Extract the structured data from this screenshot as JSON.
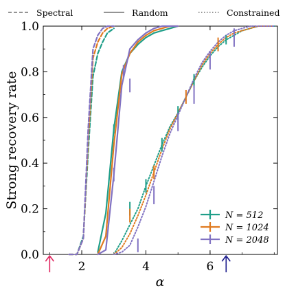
{
  "chart_data": {
    "type": "line",
    "xlabel": "α",
    "ylabel": "Strong recovery rate",
    "xlim": [
      0.8,
      8.1
    ],
    "ylim": [
      0.0,
      1.0
    ],
    "x_ticks": [
      2,
      4,
      6
    ],
    "y_ticks": [
      0.0,
      0.2,
      0.4,
      0.6,
      0.8,
      1.0
    ],
    "grid": false,
    "method_legend": [
      {
        "label": "Spectral",
        "dash": "dashed"
      },
      {
        "label": "Random",
        "dash": "solid"
      },
      {
        "label": "Constrained",
        "dash": "dotted"
      }
    ],
    "size_legend_placement": "bottom-right",
    "colors": {
      "N512": "#1f9e89",
      "N1024": "#e07a1f",
      "N2048": "#8172c2"
    },
    "size_legend": [
      {
        "text": "N = 512",
        "color": "#1f9e89"
      },
      {
        "text": "N = 1024",
        "color": "#e07a1f"
      },
      {
        "text": "N = 2048",
        "color": "#8172c2"
      }
    ],
    "series": [
      {
        "method": "Spectral",
        "N": 512,
        "color": "#1f9e89",
        "dash": "dashed",
        "x": [
          1.6,
          1.85,
          2.05,
          2.2,
          2.35,
          2.5,
          2.65,
          2.8,
          3.0
        ],
        "y": [
          0.0,
          0.0,
          0.08,
          0.45,
          0.78,
          0.88,
          0.93,
          0.97,
          0.99
        ]
      },
      {
        "method": "Spectral",
        "N": 1024,
        "color": "#e07a1f",
        "dash": "dashed",
        "x": [
          1.6,
          1.85,
          2.05,
          2.2,
          2.35,
          2.5,
          2.65,
          2.8,
          3.0
        ],
        "y": [
          0.0,
          0.0,
          0.07,
          0.5,
          0.86,
          0.93,
          0.97,
          0.99,
          1.0
        ]
      },
      {
        "method": "Spectral",
        "N": 2048,
        "color": "#8172c2",
        "dash": "dashed",
        "x": [
          1.6,
          1.85,
          2.05,
          2.2,
          2.35,
          2.5,
          2.65,
          2.8,
          3.0
        ],
        "y": [
          0.0,
          0.0,
          0.07,
          0.55,
          0.9,
          0.96,
          0.99,
          1.0,
          1.0
        ]
      },
      {
        "method": "Random",
        "N": 512,
        "color": "#1f9e89",
        "dash": "solid",
        "x": [
          2.5,
          2.75,
          3.0,
          3.25,
          3.5,
          3.75,
          4.0,
          4.25,
          4.5,
          4.75,
          5.0
        ],
        "y": [
          0.01,
          0.18,
          0.55,
          0.8,
          0.88,
          0.92,
          0.95,
          0.97,
          0.98,
          0.99,
          1.0
        ]
      },
      {
        "method": "Random",
        "N": 1024,
        "color": "#e07a1f",
        "dash": "solid",
        "x": [
          2.5,
          2.75,
          3.0,
          3.25,
          3.5,
          3.75,
          4.0,
          4.25,
          4.5,
          4.75,
          5.0
        ],
        "y": [
          0.0,
          0.08,
          0.48,
          0.79,
          0.88,
          0.93,
          0.96,
          0.98,
          0.99,
          1.0,
          1.0
        ]
      },
      {
        "method": "Random",
        "N": 2048,
        "color": "#8172c2",
        "dash": "solid",
        "x": [
          2.5,
          2.75,
          3.0,
          3.25,
          3.5,
          3.75,
          4.0,
          4.25,
          4.5,
          4.75,
          5.0
        ],
        "y": [
          0.0,
          0.02,
          0.35,
          0.74,
          0.9,
          0.94,
          0.97,
          0.99,
          1.0,
          1.0,
          1.0
        ]
      },
      {
        "method": "Constrained",
        "N": 512,
        "color": "#1f9e89",
        "dash": "dotted",
        "x": [
          3.0,
          3.25,
          3.5,
          3.75,
          4.0,
          4.25,
          4.5,
          4.75,
          5.0,
          5.25,
          5.5,
          5.75,
          6.0,
          6.25,
          6.5,
          6.75,
          7.0,
          7.25,
          7.5,
          7.75,
          8.0
        ],
        "y": [
          0.0,
          0.06,
          0.13,
          0.2,
          0.3,
          0.39,
          0.48,
          0.56,
          0.62,
          0.69,
          0.76,
          0.82,
          0.87,
          0.91,
          0.94,
          0.96,
          0.98,
          0.99,
          1.0,
          1.0,
          1.0
        ]
      },
      {
        "method": "Constrained",
        "N": 1024,
        "color": "#e07a1f",
        "dash": "dotted",
        "x": [
          3.0,
          3.25,
          3.5,
          3.75,
          4.0,
          4.25,
          4.5,
          4.75,
          5.0,
          5.25,
          5.5,
          5.75,
          6.0,
          6.25,
          6.5,
          6.75,
          7.0,
          7.25,
          7.5,
          7.75,
          8.0
        ],
        "y": [
          0.0,
          0.03,
          0.09,
          0.17,
          0.26,
          0.36,
          0.46,
          0.55,
          0.62,
          0.69,
          0.76,
          0.83,
          0.88,
          0.92,
          0.95,
          0.97,
          0.98,
          0.99,
          1.0,
          1.0,
          1.0
        ]
      },
      {
        "method": "Constrained",
        "N": 2048,
        "color": "#8172c2",
        "dash": "dotted",
        "x": [
          3.0,
          3.25,
          3.5,
          3.75,
          4.0,
          4.25,
          4.5,
          4.75,
          5.0,
          5.25,
          5.5,
          5.75,
          6.0,
          6.25,
          6.5,
          6.75,
          7.0,
          7.25,
          7.5,
          7.75,
          8.0
        ],
        "y": [
          0.0,
          0.01,
          0.04,
          0.12,
          0.21,
          0.32,
          0.43,
          0.53,
          0.61,
          0.69,
          0.77,
          0.84,
          0.89,
          0.93,
          0.96,
          0.98,
          0.99,
          1.0,
          1.0,
          1.0,
          1.0
        ]
      }
    ],
    "error_bars": [
      {
        "N": 512,
        "x": 3.0,
        "y": 0.55,
        "e": 0.02
      },
      {
        "N": 512,
        "x": 3.5,
        "y": 0.2,
        "e": 0.03
      },
      {
        "N": 512,
        "x": 4.0,
        "y": 0.3,
        "e": 0.03
      },
      {
        "N": 512,
        "x": 4.5,
        "y": 0.48,
        "e": 0.03
      },
      {
        "N": 512,
        "x": 5.0,
        "y": 0.62,
        "e": 0.03
      },
      {
        "N": 512,
        "x": 5.5,
        "y": 0.76,
        "e": 0.03
      },
      {
        "N": 512,
        "x": 6.5,
        "y": 0.94,
        "e": 0.02
      },
      {
        "N": 1024,
        "x": 3.5,
        "y": 0.17,
        "e": 0.03
      },
      {
        "N": 1024,
        "x": 4.25,
        "y": 0.36,
        "e": 0.03
      },
      {
        "N": 1024,
        "x": 5.25,
        "y": 0.69,
        "e": 0.03
      },
      {
        "N": 1024,
        "x": 6.25,
        "y": 0.92,
        "e": 0.03
      },
      {
        "N": 2048,
        "x": 3.75,
        "y": 0.04,
        "e": 0.03
      },
      {
        "N": 2048,
        "x": 4.25,
        "y": 0.26,
        "e": 0.04
      },
      {
        "N": 2048,
        "x": 5.0,
        "y": 0.58,
        "e": 0.04
      },
      {
        "N": 2048,
        "x": 5.5,
        "y": 0.7,
        "e": 0.04
      },
      {
        "N": 2048,
        "x": 6.0,
        "y": 0.85,
        "e": 0.04
      },
      {
        "N": 2048,
        "x": 6.75,
        "y": 0.95,
        "e": 0.04
      },
      {
        "N": 2048,
        "x": 3.3,
        "y": 0.8,
        "e": 0.03
      },
      {
        "N": 2048,
        "x": 3.5,
        "y": 0.74,
        "e": 0.03
      },
      {
        "N": 2048,
        "x": 3.0,
        "y": 0.35,
        "e": 0.03
      }
    ],
    "annotations": [
      {
        "kind": "arrow-up",
        "x": 1.0,
        "color": "#e0245e"
      },
      {
        "kind": "arrow-up",
        "x": 6.5,
        "color": "#1a1a8c"
      }
    ]
  }
}
